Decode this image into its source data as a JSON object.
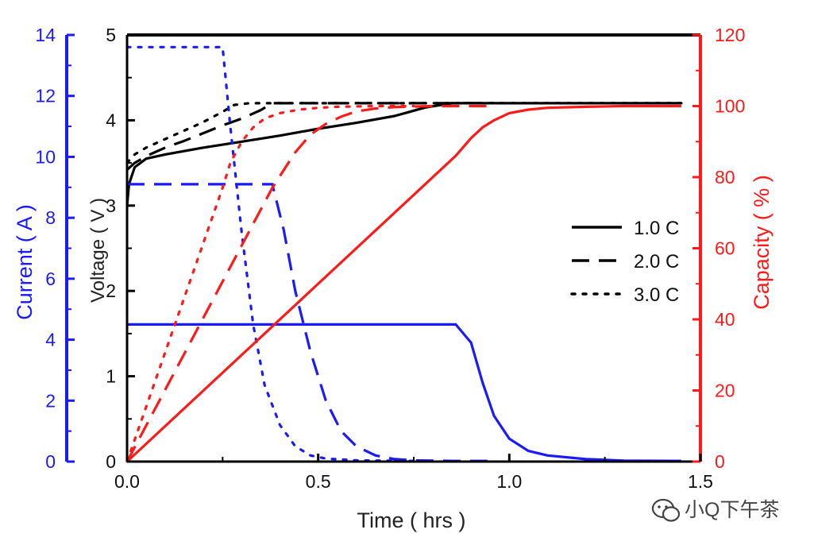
{
  "chart_data": {
    "type": "line",
    "title": "",
    "xlabel": "Time ( hrs )",
    "xlim": [
      0,
      1.5
    ],
    "xticks": [
      "0.0",
      "0.5",
      "1.0",
      "1.5"
    ],
    "x_tick_values": [
      0,
      0.5,
      1.0,
      1.5
    ],
    "axes": {
      "current": {
        "label": "Current ( A )",
        "lim": [
          0,
          14
        ],
        "ticks": [
          "0",
          "2",
          "4",
          "6",
          "8",
          "10",
          "12",
          "14"
        ],
        "tick_values": [
          0,
          2,
          4,
          6,
          8,
          10,
          12,
          14
        ],
        "color": "#1a1aff"
      },
      "voltage": {
        "label": "Voltage ( V )",
        "lim": [
          0,
          5
        ],
        "ticks": [
          "0",
          "1",
          "2",
          "3",
          "4",
          "5"
        ],
        "tick_values": [
          0,
          1,
          2,
          3,
          4,
          5
        ],
        "color": "#000000"
      },
      "capacity": {
        "label": "Capacity ( % )",
        "lim": [
          0,
          120
        ],
        "ticks": [
          "0",
          "20",
          "40",
          "60",
          "80",
          "100",
          "120"
        ],
        "tick_values": [
          0,
          20,
          40,
          60,
          80,
          100,
          120
        ],
        "color": "#ff1a1a"
      }
    },
    "legend": {
      "position": "right",
      "entries": [
        {
          "label": "1.0 C",
          "dash": "solid"
        },
        {
          "label": "2.0 C",
          "dash": "dashed"
        },
        {
          "label": "3.0 C",
          "dash": "dotted"
        }
      ]
    },
    "series": [
      {
        "name": "1.0 C Voltage",
        "axis": "voltage",
        "color": "#000000",
        "dash": "solid",
        "x": [
          0,
          0.005,
          0.02,
          0.05,
          0.1,
          0.2,
          0.3,
          0.4,
          0.5,
          0.6,
          0.7,
          0.78,
          0.85,
          1.0,
          1.2,
          1.45
        ],
        "y": [
          3.0,
          3.25,
          3.45,
          3.55,
          3.6,
          3.68,
          3.75,
          3.82,
          3.9,
          3.97,
          4.05,
          4.15,
          4.2,
          4.2,
          4.2,
          4.2
        ]
      },
      {
        "name": "2.0 C Voltage",
        "axis": "voltage",
        "color": "#000000",
        "dash": "dashed",
        "x": [
          0,
          0.02,
          0.05,
          0.1,
          0.15,
          0.2,
          0.25,
          0.3,
          0.35,
          0.38,
          0.45,
          0.6,
          0.8,
          0.96
        ],
        "y": [
          3.42,
          3.5,
          3.58,
          3.68,
          3.76,
          3.85,
          3.94,
          4.02,
          4.12,
          4.2,
          4.2,
          4.2,
          4.2,
          4.2
        ]
      },
      {
        "name": "3.0 C Voltage",
        "axis": "voltage",
        "color": "#000000",
        "dash": "dotted",
        "x": [
          0,
          0.02,
          0.05,
          0.1,
          0.15,
          0.2,
          0.25,
          0.28,
          0.32,
          0.45,
          0.6,
          0.75,
          0.9,
          1.45
        ],
        "y": [
          3.5,
          3.6,
          3.68,
          3.78,
          3.88,
          3.98,
          4.1,
          4.18,
          4.2,
          4.2,
          4.2,
          4.2,
          4.2,
          4.2
        ]
      },
      {
        "name": "1.0 C Current",
        "axis": "current",
        "color": "#1a1aff",
        "dash": "solid",
        "x": [
          0,
          0.86,
          0.9,
          0.93,
          0.96,
          1.0,
          1.05,
          1.1,
          1.2,
          1.3,
          1.45
        ],
        "y": [
          4.5,
          4.5,
          3.9,
          2.6,
          1.5,
          0.75,
          0.35,
          0.2,
          0.08,
          0.03,
          0.02
        ]
      },
      {
        "name": "2.0 C Current",
        "axis": "current",
        "color": "#1a1aff",
        "dash": "dashed",
        "x": [
          0,
          0.38,
          0.41,
          0.44,
          0.48,
          0.52,
          0.56,
          0.6,
          0.65,
          0.7,
          0.75,
          0.85,
          0.96
        ],
        "y": [
          9.1,
          9.1,
          7.6,
          5.6,
          3.6,
          2.0,
          1.0,
          0.5,
          0.2,
          0.08,
          0.04,
          0.02,
          0.02
        ]
      },
      {
        "name": "3.0 C Current",
        "axis": "current",
        "color": "#1a1aff",
        "dash": "dotted",
        "x": [
          0,
          0.25,
          0.27,
          0.3,
          0.33,
          0.36,
          0.4,
          0.44,
          0.48,
          0.52,
          0.6,
          0.75
        ],
        "y": [
          13.6,
          13.6,
          11.0,
          7.5,
          4.5,
          2.5,
          1.2,
          0.5,
          0.2,
          0.1,
          0.04,
          0.02
        ]
      },
      {
        "name": "1.0 C Capacity",
        "axis": "capacity",
        "color": "#ff1a1a",
        "dash": "solid",
        "x": [
          0,
          0.86,
          0.9,
          0.93,
          0.96,
          1.0,
          1.05,
          1.1,
          1.2,
          1.3,
          1.45
        ],
        "y": [
          0,
          86,
          91,
          94,
          96,
          98,
          99,
          99.5,
          99.8,
          100,
          100
        ]
      },
      {
        "name": "2.0 C Capacity",
        "axis": "capacity",
        "color": "#ff1a1a",
        "dash": "dashed",
        "x": [
          0,
          0.38,
          0.41,
          0.44,
          0.48,
          0.52,
          0.56,
          0.6,
          0.65,
          0.7,
          0.8,
          0.96
        ],
        "y": [
          0,
          77,
          82,
          87,
          92,
          95,
          97,
          98.5,
          99.3,
          99.7,
          100,
          100
        ]
      },
      {
        "name": "3.0 C Capacity",
        "axis": "capacity",
        "color": "#ff1a1a",
        "dash": "dotted",
        "x": [
          0,
          0.25,
          0.27,
          0.3,
          0.33,
          0.36,
          0.4,
          0.45,
          0.5,
          0.55,
          0.65,
          0.75
        ],
        "y": [
          0,
          77,
          84,
          90,
          94,
          96.5,
          98,
          99,
          99.5,
          99.8,
          100,
          100
        ]
      }
    ]
  },
  "watermark": {
    "icon": "wechat-icon",
    "text": "小Q下午茶"
  }
}
